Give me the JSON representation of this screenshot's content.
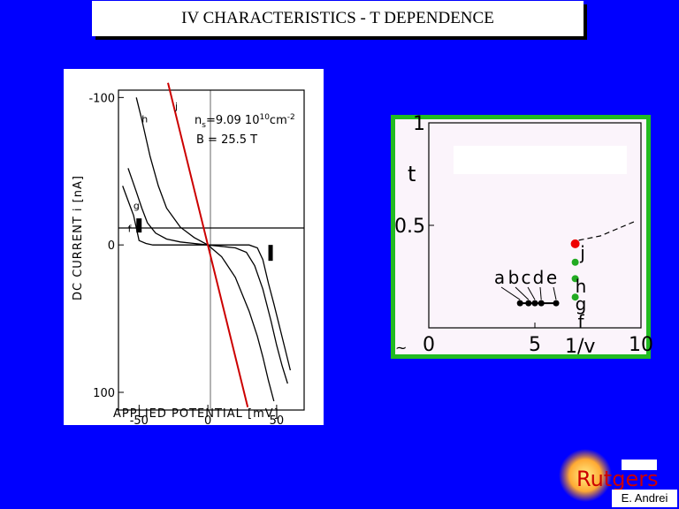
{
  "title": "IV CHARACTERISTICS - T DEPENDENCE",
  "credit": "E. Andrei",
  "logo_text": "Rutgers",
  "chart_data": [
    {
      "type": "line",
      "xlabel": "APPLIED POTENTIAL  [mV]",
      "ylabel": "DC CURRENT  i  [nA]",
      "xticks": [
        "-50",
        "0",
        "50"
      ],
      "yticks": [
        "-100",
        "0",
        "100"
      ],
      "xlim": [
        -65,
        70
      ],
      "ylim": [
        -105,
        112
      ],
      "annotation_ns_prefix": "n",
      "annotation_ns_sub": "s",
      "annotation_ns_value": "=9.09 10",
      "annotation_ns_exp": "10",
      "annotation_ns_unit": "cm",
      "annotation_ns_unit_exp": "-2",
      "annotation_B": "B = 25.5 T",
      "series": [
        {
          "name": "f",
          "color": "#000000",
          "x": [
            -62,
            -58,
            -54,
            -50,
            -45,
            -40,
            -30,
            -20,
            -10,
            0,
            10,
            20,
            30,
            36,
            40,
            44,
            48,
            52,
            56,
            60
          ],
          "y": [
            -40,
            -30,
            -20,
            -3,
            -1,
            0,
            0,
            0,
            0,
            0,
            0,
            0,
            0,
            2,
            10,
            26,
            40,
            55,
            70,
            85
          ]
        },
        {
          "name": "g",
          "color": "#000000",
          "x": [
            -58,
            -55,
            -52,
            -48,
            -44,
            -38,
            -30,
            -20,
            -10,
            0,
            10,
            20,
            28,
            34,
            40,
            46,
            50,
            54,
            58
          ],
          "y": [
            -52,
            -44,
            -36,
            -25,
            -15,
            -8,
            -4,
            -2,
            -1,
            0,
            1,
            2,
            5,
            14,
            30,
            52,
            68,
            82,
            94
          ]
        },
        {
          "name": "h",
          "color": "#000000",
          "x": [
            -52,
            -48,
            -42,
            -36,
            -30,
            -20,
            -10,
            0,
            10,
            20,
            30,
            36,
            40,
            44,
            48
          ],
          "y": [
            -100,
            -85,
            -60,
            -40,
            -25,
            -12,
            -5,
            0,
            8,
            22,
            45,
            62,
            76,
            92,
            106
          ]
        },
        {
          "name": "j",
          "color": "#cc0000",
          "x": [
            -29,
            0,
            29
          ],
          "y": [
            -110,
            0,
            110
          ]
        }
      ]
    },
    {
      "type": "scatter",
      "xlabel": "1/v",
      "ylabel": "t",
      "xticks": [
        "0",
        "5",
        "10"
      ],
      "yticks": [
        "0.5",
        "1"
      ],
      "y_zero_label": "~",
      "xlim": [
        0,
        10
      ],
      "ylim": [
        0,
        1
      ],
      "series": [
        {
          "name": "a",
          "color": "#000000",
          "x": [
            4.3
          ],
          "y": [
            0.12
          ]
        },
        {
          "name": "b",
          "color": "#000000",
          "x": [
            4.7
          ],
          "y": [
            0.12
          ]
        },
        {
          "name": "c",
          "color": "#000000",
          "x": [
            5.0
          ],
          "y": [
            0.12
          ]
        },
        {
          "name": "d",
          "color": "#000000",
          "x": [
            5.3
          ],
          "y": [
            0.12
          ]
        },
        {
          "name": "e",
          "color": "#000000",
          "x": [
            6.0
          ],
          "y": [
            0.12
          ]
        },
        {
          "name": "f",
          "color": "#22aa22",
          "x": [
            6.9
          ],
          "y": [
            0.15
          ]
        },
        {
          "name": "g",
          "color": "#22aa22",
          "x": [
            6.9
          ],
          "y": [
            0.24
          ]
        },
        {
          "name": "h",
          "color": "#22aa22",
          "x": [
            6.9
          ],
          "y": [
            0.32
          ]
        },
        {
          "name": "j",
          "color": "#ee0000",
          "x": [
            6.9
          ],
          "y": [
            0.41
          ]
        }
      ]
    }
  ]
}
